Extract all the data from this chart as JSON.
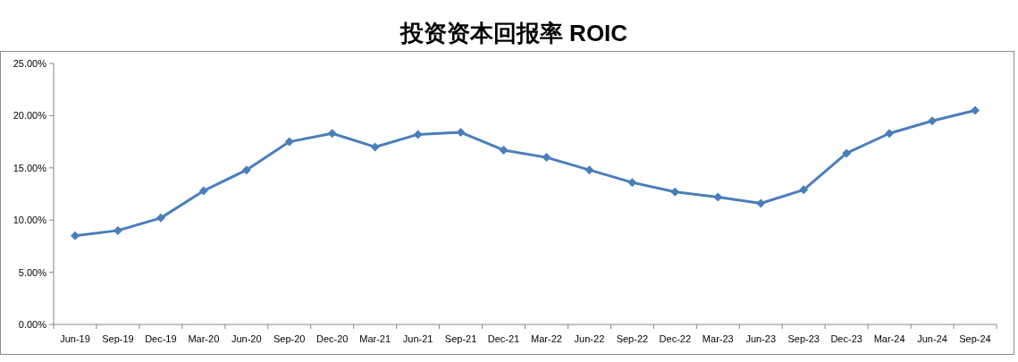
{
  "chart_data": {
    "type": "line",
    "title": "投资资本回报率 ROIC",
    "categories": [
      "Jun-19",
      "Sep-19",
      "Dec-19",
      "Mar-20",
      "Jun-20",
      "Sep-20",
      "Dec-20",
      "Mar-21",
      "Jun-21",
      "Sep-21",
      "Dec-21",
      "Mar-22",
      "Jun-22",
      "Sep-22",
      "Dec-22",
      "Mar-23",
      "Jun-23",
      "Sep-23",
      "Dec-23",
      "Mar-24",
      "Jun-24",
      "Sep-24"
    ],
    "series": [
      {
        "color": "#4a7ebb",
        "values": [
          8.5,
          9.0,
          10.2,
          12.8,
          14.8,
          17.5,
          18.3,
          17.0,
          18.2,
          18.4,
          16.7,
          16.0,
          14.8,
          13.6,
          12.7,
          12.2,
          11.6,
          12.9,
          16.4,
          18.3,
          19.5,
          20.5
        ]
      }
    ],
    "ylim": [
      0,
      25
    ],
    "yticks": [
      {
        "value": 0,
        "label": "0.00%"
      },
      {
        "value": 5,
        "label": "5.00%"
      },
      {
        "value": 10,
        "label": "10.00%"
      },
      {
        "value": 15,
        "label": "15.00%"
      },
      {
        "value": 20,
        "label": "20.00%"
      },
      {
        "value": 25,
        "label": "25.00%"
      }
    ],
    "grid": false,
    "marker": "diamond",
    "line_style": "solid"
  }
}
